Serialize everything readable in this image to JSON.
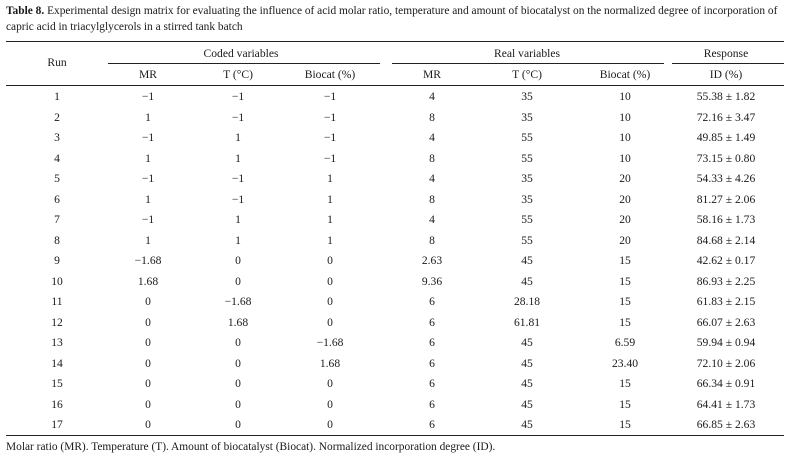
{
  "caption": {
    "label": "Table 8.",
    "text": "Experimental design matrix for evaluating the influence of acid molar ratio, temperature and amount of biocatalyst on the normalized degree of incorporation of capric acid in triacylglycerols in a stirred tank batch"
  },
  "headers": {
    "run": "Run",
    "coded": "Coded variables",
    "real": "Real variables",
    "response": "Response",
    "sub": [
      "MR",
      "T (°C)",
      "Biocat (%)",
      "MR",
      "T (°C)",
      "Biocat (%)",
      "ID (%)"
    ]
  },
  "rows": [
    [
      "1",
      "−1",
      "−1",
      "−1",
      "4",
      "35",
      "10",
      "55.38 ± 1.82"
    ],
    [
      "2",
      "1",
      "−1",
      "−1",
      "8",
      "35",
      "10",
      "72.16 ± 3.47"
    ],
    [
      "3",
      "−1",
      "1",
      "−1",
      "4",
      "55",
      "10",
      "49.85 ± 1.49"
    ],
    [
      "4",
      "1",
      "1",
      "−1",
      "8",
      "55",
      "10",
      "73.15 ± 0.80"
    ],
    [
      "5",
      "−1",
      "−1",
      "1",
      "4",
      "35",
      "20",
      "54.33 ± 4.26"
    ],
    [
      "6",
      "1",
      "−1",
      "1",
      "8",
      "35",
      "20",
      "81.27 ± 2.06"
    ],
    [
      "7",
      "−1",
      "1",
      "1",
      "4",
      "55",
      "20",
      "58.16 ± 1.73"
    ],
    [
      "8",
      "1",
      "1",
      "1",
      "8",
      "55",
      "20",
      "84.68 ± 2.14"
    ],
    [
      "9",
      "−1.68",
      "0",
      "0",
      "2.63",
      "45",
      "15",
      "42.62 ± 0.17"
    ],
    [
      "10",
      "1.68",
      "0",
      "0",
      "9.36",
      "45",
      "15",
      "86.93 ± 2.25"
    ],
    [
      "11",
      "0",
      "−1.68",
      "0",
      "6",
      "28.18",
      "15",
      "61.83 ± 2.15"
    ],
    [
      "12",
      "0",
      "1.68",
      "0",
      "6",
      "61.81",
      "15",
      "66.07 ± 2.63"
    ],
    [
      "13",
      "0",
      "0",
      "−1.68",
      "6",
      "45",
      "6.59",
      "59.94 ± 0.94"
    ],
    [
      "14",
      "0",
      "0",
      "1.68",
      "6",
      "45",
      "23.40",
      "72.10 ± 2.06"
    ],
    [
      "15",
      "0",
      "0",
      "0",
      "6",
      "45",
      "15",
      "66.34 ± 0.91"
    ],
    [
      "16",
      "0",
      "0",
      "0",
      "6",
      "45",
      "15",
      "64.41 ± 1.73"
    ],
    [
      "17",
      "0",
      "0",
      "0",
      "6",
      "45",
      "15",
      "66.85 ± 2.63"
    ]
  ],
  "footnote": "Molar ratio (MR). Temperature (T). Amount of biocatalyst (Biocat). Normalized incorporation degree (ID)."
}
